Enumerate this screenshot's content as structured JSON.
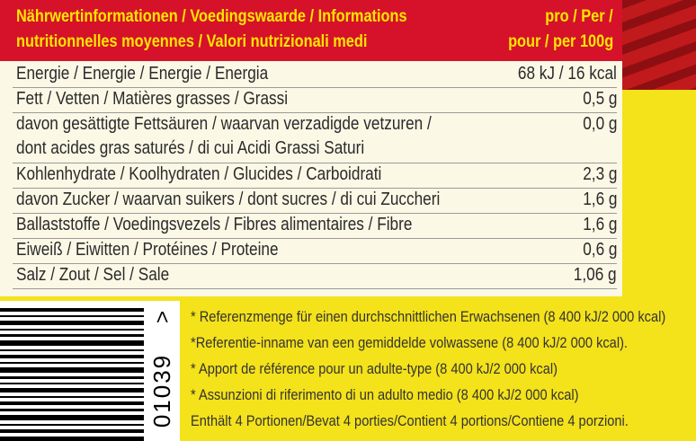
{
  "header": {
    "title_lines": [
      "Nährwertinformationen / Voedingswaarde / Informations",
      "nutritionnelles moyennes / Valori nutrizionali medi"
    ],
    "per_lines": [
      "pro / Per /",
      "pour / per 100g"
    ]
  },
  "table": {
    "rows": [
      {
        "label": [
          "Energie / Energie / Energie / Energia"
        ],
        "value": "68 kJ / 16 kcal"
      },
      {
        "label": [
          "Fett / Vetten / Matières grasses / Grassi"
        ],
        "value": "0,5 g"
      },
      {
        "label": [
          "davon gesättigte Fettsäuren / waarvan verzadigde vetzuren /",
          "dont acides gras saturés / di cui Acidi Grassi Saturi"
        ],
        "value": "0,0 g"
      },
      {
        "label": [
          "Kohlenhydrate / Koolhydraten / Glucides / Carboidrati"
        ],
        "value": "2,3 g"
      },
      {
        "label": [
          "davon Zucker / waarvan suikers / dont sucres / di cui Zuccheri"
        ],
        "value": "1,6 g"
      },
      {
        "label": [
          "Ballaststoffe / Voedingsvezels / Fibres alimentaires / Fibre"
        ],
        "value": "1,6 g"
      },
      {
        "label": [
          "Eiweiß / Eiwitten / Protéines / Proteine"
        ],
        "value": "0,6 g"
      },
      {
        "label": [
          "Salz / Zout / Sel / Sale"
        ],
        "value": "1,06 g"
      }
    ]
  },
  "footnotes": [
    "* Referenzmenge für einen durchschnittlichen Erwachsenen (8 400 kJ/2 000 kcal)",
    "*Referentie-inname van een gemiddelde volwassene (8 400 kJ/2 000 kcal).",
    "* Apport de référence pour un adulte-type (8 400 kJ/2 000 kcal)",
    "* Assunzioni di riferimento di un adulto medio (8 400 kJ/2 000 kcal)",
    "Enthält 4 Portionen/Bevat 4 porties/Contient 4 portions/Contiene 4 porzioni."
  ],
  "barcode": {
    "digits": "01039",
    "arrow": ">"
  }
}
